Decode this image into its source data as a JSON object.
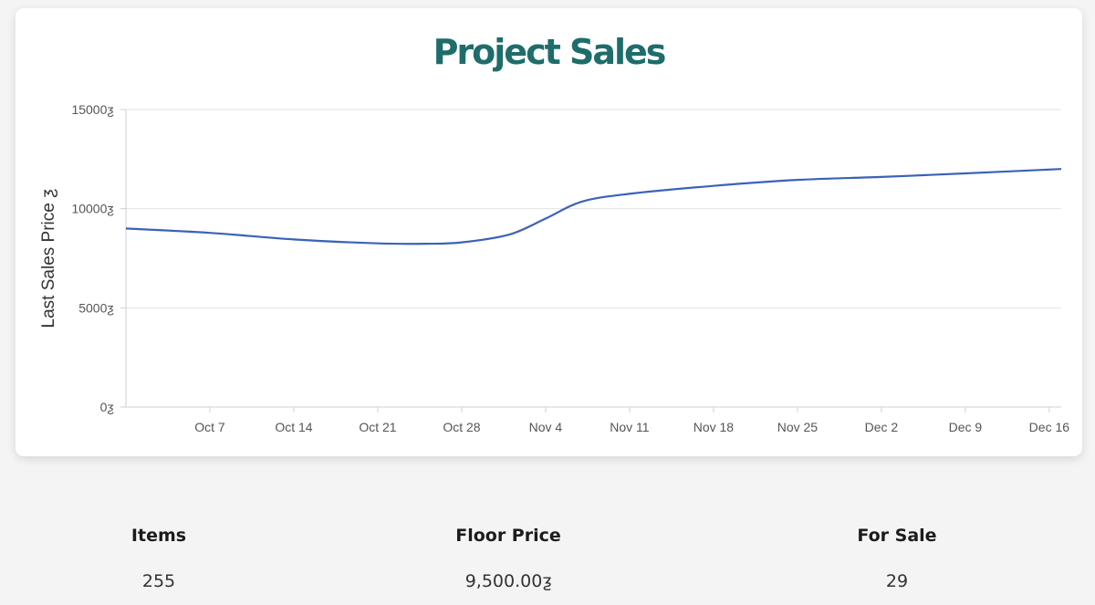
{
  "colors": {
    "title": "#1e6d6b",
    "line": "#3a63b8",
    "grid": "#e2e2e2",
    "axis": "#cfcfcf",
    "tick_text": "#555555",
    "card": "#ffffff",
    "background": "#f4f4f4"
  },
  "chart_data": {
    "type": "line",
    "title": "Project Sales",
    "xlabel": "",
    "ylabel": "Last Sales Price ƺ",
    "x_tick_labels": [
      "Oct 7",
      "Oct 14",
      "Oct 21",
      "Oct 28",
      "Nov 4",
      "Nov 11",
      "Nov 18",
      "Nov 25",
      "Dec 2",
      "Dec 9",
      "Dec 16"
    ],
    "y_tick_labels": [
      "0ƺ",
      "5000ƺ",
      "10000ƺ",
      "15000ƺ"
    ],
    "y_ticks": [
      0,
      5000,
      10000,
      15000
    ],
    "x_range": [
      "2023-09-30",
      "2023-12-17"
    ],
    "ylim": [
      0,
      15000
    ],
    "grid": true,
    "legend": "none",
    "series": [
      {
        "x": [
          "2023-09-30",
          "2023-10-07",
          "2023-10-14",
          "2023-10-21",
          "2023-10-25",
          "2023-10-28",
          "2023-11-01",
          "2023-11-04",
          "2023-11-07",
          "2023-11-11",
          "2023-11-18",
          "2023-11-25",
          "2023-12-02",
          "2023-12-09",
          "2023-12-17"
        ],
        "values": [
          9000,
          8780,
          8450,
          8250,
          8230,
          8300,
          8700,
          9500,
          10350,
          10750,
          11150,
          11450,
          11600,
          11780,
          12000
        ]
      }
    ]
  },
  "stats": [
    {
      "label": "Items",
      "value": "255"
    },
    {
      "label": "Floor Price",
      "value": "9,500.00ƺ"
    },
    {
      "label": "For Sale",
      "value": "29"
    }
  ]
}
